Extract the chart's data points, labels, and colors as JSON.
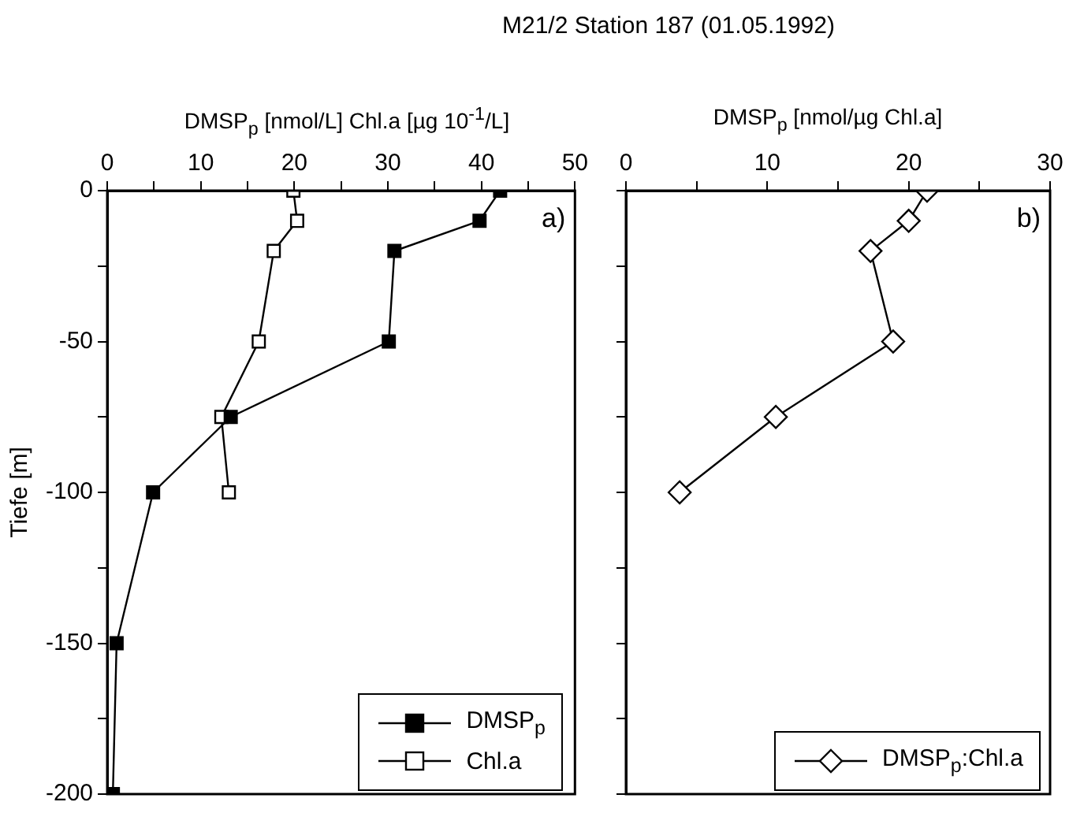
{
  "chart_data": [
    {
      "type": "line",
      "title": "M21/2 Station 187 (01.05.1992)",
      "xlabel": "DMSP$_{p}$ [nmol/L]   Chl.a [µg 10$^{-1}$/L]",
      "ylabel": "Tiefe [m]",
      "xlim": [
        0,
        50
      ],
      "xticks": [
        0,
        {
          "value": 5,
          "label": null
        },
        10,
        {
          "value": 15,
          "label": null
        },
        20,
        {
          "value": 25,
          "label": null
        },
        30,
        {
          "value": 35,
          "label": null
        },
        40,
        {
          "value": 45,
          "label": null
        },
        50
      ],
      "ylim": [
        -200,
        0
      ],
      "yticks": [
        -200,
        {
          "value": -175,
          "label": null
        },
        -150,
        {
          "value": -125,
          "label": null
        },
        -100,
        {
          "value": -75,
          "label": null
        },
        -50,
        {
          "value": -25,
          "label": null
        },
        0
      ],
      "grid": false,
      "legend": "bottom right",
      "line_style": "solid",
      "annotations": [
        "a)"
      ],
      "series": [
        {
          "name": "DMSP$_{p}$",
          "color": "#000000",
          "marker": "square",
          "x": [
            42,
            39.8,
            30.7,
            30.1,
            13.2,
            4.9,
            1.0,
            0.6
          ],
          "values": [
            0,
            -10,
            -20,
            -50,
            -75,
            -100,
            -150,
            -200
          ]
        },
        {
          "name": "Chl.a",
          "color": "#ffffff",
          "marker": "square",
          "x": [
            19.9,
            20.3,
            17.8,
            16.2,
            12.2,
            13.0
          ],
          "values": [
            0,
            -10,
            -20,
            -50,
            -75,
            -100
          ]
        }
      ]
    },
    {
      "type": "line",
      "xlabel": "DMSP$_{p}$ [nmol/µg Chl.a]",
      "xlim": [
        0,
        30
      ],
      "xticks": [
        0,
        {
          "value": 5,
          "label": null
        },
        10,
        {
          "value": 15,
          "label": null
        },
        20,
        {
          "value": 25,
          "label": null
        },
        30
      ],
      "ylim": [
        -200,
        0
      ],
      "yticks": [
        -200,
        {
          "value": -175,
          "label": null
        },
        -150,
        {
          "value": -125,
          "label": null
        },
        -100,
        {
          "value": -75,
          "label": null
        },
        -50,
        {
          "value": -25,
          "label": null
        },
        0
      ],
      "tick_labels": "x",
      "grid": false,
      "legend": "bottom right",
      "line_style": "solid",
      "annotations": [
        "b)"
      ],
      "series": [
        {
          "name": "DMSP$_{p}$:Chl.a",
          "color": "#ffffff",
          "marker": "diamond",
          "x": [
            21.3,
            20.0,
            17.3,
            18.9,
            10.6,
            3.8
          ],
          "values": [
            0,
            -10,
            -20,
            -50,
            -75,
            -100
          ]
        }
      ]
    }
  ]
}
